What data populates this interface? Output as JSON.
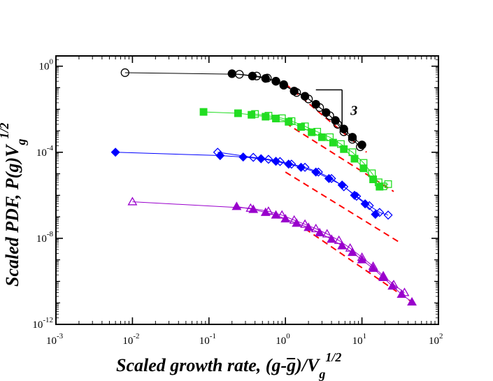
{
  "chart_data": {
    "type": "scatter",
    "title": "",
    "xlabel": "Scaled growth rate, (g-g̅)/Vg^1/2",
    "xlabel_parts": {
      "main": "Scaled growth rate, (g-",
      "bar": "g",
      "after": ")/V",
      "sub": "g",
      "sup": "1/2"
    },
    "ylabel": "Scaled PDF, P(g)Vg^1/2",
    "ylabel_parts": {
      "main": "Scaled PDF, P(g)V",
      "sub": "g",
      "sup": "1/2"
    },
    "xscale": "log",
    "yscale": "log",
    "xlim": [
      0.001,
      100
    ],
    "ylim": [
      1e-12,
      3
    ],
    "x_ticks": [
      {
        "value": 0.001,
        "base": "10",
        "exp": "-3"
      },
      {
        "value": 0.01,
        "base": "10",
        "exp": "-2"
      },
      {
        "value": 0.1,
        "base": "10",
        "exp": "-1"
      },
      {
        "value": 1,
        "base": "10",
        "exp": "0"
      },
      {
        "value": 10,
        "base": "10",
        "exp": "1"
      },
      {
        "value": 100,
        "base": "10",
        "exp": "2"
      }
    ],
    "y_ticks": [
      {
        "value": 1,
        "base": "10",
        "exp": "0"
      },
      {
        "value": 0.0001,
        "base": "10",
        "exp": "-4"
      },
      {
        "value": 1e-08,
        "base": "10",
        "exp": "-8"
      },
      {
        "value": 1e-12,
        "base": "10",
        "exp": "-12"
      }
    ],
    "grid": false,
    "annotation": {
      "text": "3",
      "slope_triangle": {
        "x1": 2.5,
        "x2": 5.5,
        "y1": 0.08,
        "y2": 0.0009
      }
    },
    "series": [
      {
        "name": "black-open",
        "color": "#000000",
        "marker": "circle",
        "filled": false,
        "x": [
          0.008,
          0.25,
          0.42,
          0.58,
          0.75,
          0.95,
          1.4,
          2.0,
          2.8,
          3.8,
          4.8,
          5.8,
          7.5,
          9.5
        ],
        "y": [
          0.5,
          0.42,
          0.35,
          0.28,
          0.2,
          0.13,
          0.06,
          0.03,
          0.012,
          0.005,
          0.002,
          0.0009,
          0.0004,
          0.00018
        ]
      },
      {
        "name": "black-filled",
        "color": "#000000",
        "marker": "circle",
        "filled": true,
        "x": [
          0.2,
          0.37,
          0.55,
          0.75,
          0.95,
          1.3,
          1.8,
          2.5,
          3.4,
          4.5,
          5.8,
          7.5,
          10
        ],
        "y": [
          0.45,
          0.35,
          0.27,
          0.2,
          0.14,
          0.07,
          0.04,
          0.017,
          0.007,
          0.003,
          0.0012,
          0.0005,
          0.00022
        ]
      },
      {
        "name": "green-filled",
        "color": "#22dd22",
        "marker": "square",
        "filled": true,
        "x": [
          0.085,
          0.24,
          0.36,
          0.55,
          0.75,
          1.1,
          1.6,
          2.2,
          3.0,
          4.2,
          5.8,
          8.0,
          10.5,
          14,
          17
        ],
        "y": [
          0.0075,
          0.0065,
          0.0055,
          0.0045,
          0.0037,
          0.0026,
          0.0015,
          0.00085,
          0.0005,
          0.00028,
          0.00014,
          5e-05,
          1.8e-05,
          5.5e-06,
          2.5e-06
        ]
      },
      {
        "name": "green-open",
        "color": "#22dd22",
        "marker": "square",
        "filled": false,
        "x": [
          0.4,
          0.6,
          0.9,
          1.2,
          1.8,
          2.6,
          3.8,
          5.3,
          7.5,
          10.5,
          13.5,
          16.5,
          19,
          22
        ],
        "y": [
          0.006,
          0.005,
          0.0038,
          0.0028,
          0.0016,
          0.0009,
          0.0005,
          0.00024,
          0.0001,
          3.2e-05,
          1.05e-05,
          4e-06,
          2.6e-06,
          3.3e-06
        ]
      },
      {
        "name": "blue-filled",
        "color": "#0000ff",
        "marker": "diamond",
        "filled": true,
        "x": [
          0.006,
          0.14,
          0.28,
          0.48,
          0.75,
          1.1,
          1.6,
          2.5,
          3.7,
          5.5,
          8.0,
          11,
          15
        ],
        "y": [
          0.0001,
          7e-05,
          6e-05,
          5e-05,
          3.8e-05,
          2.8e-05,
          2e-05,
          1.2e-05,
          6e-06,
          3e-06,
          1e-06,
          4e-07,
          1.3e-07
        ]
      },
      {
        "name": "blue-open",
        "color": "#0000ff",
        "marker": "diamond",
        "filled": false,
        "x": [
          0.13,
          0.38,
          0.6,
          0.85,
          1.2,
          1.8,
          2.7,
          4.0,
          5.8,
          8.5,
          12.5,
          17,
          22
        ],
        "y": [
          0.0001,
          5.8e-05,
          4.7e-05,
          3.7e-05,
          2.8e-05,
          2e-05,
          1.2e-05,
          6e-06,
          2.5e-06,
          9e-07,
          3.3e-07,
          1.6e-07,
          1.2e-07
        ]
      },
      {
        "name": "purple-filled",
        "color": "#9900cc",
        "marker": "triangle",
        "filled": true,
        "x": [
          0.23,
          0.38,
          0.55,
          0.75,
          1.0,
          1.4,
          2.0,
          2.8,
          4.0,
          5.5,
          7.5,
          10,
          14,
          19,
          25,
          33,
          45
        ],
        "y": [
          3e-07,
          2.2e-07,
          1.6e-07,
          1.2e-07,
          8e-08,
          5e-08,
          3.2e-08,
          1.8e-08,
          9e-09,
          4.5e-09,
          2.2e-09,
          1e-09,
          4e-10,
          1.5e-10,
          6e-11,
          2.5e-11,
          1.1e-11
        ]
      },
      {
        "name": "purple-open",
        "color": "#9900cc",
        "marker": "triangle",
        "filled": false,
        "x": [
          0.01,
          0.35,
          0.6,
          0.9,
          1.3,
          1.8,
          2.5,
          3.5,
          5.0,
          7.0,
          10,
          14,
          19,
          26,
          36
        ],
        "y": [
          5e-07,
          2.5e-07,
          1.8e-07,
          1.2e-07,
          7e-08,
          4.5e-08,
          2.8e-08,
          1.6e-08,
          8e-09,
          3.5e-09,
          1.3e-09,
          5e-10,
          1.8e-10,
          7e-11,
          3e-11
        ]
      }
    ],
    "reference_lines": [
      {
        "color": "#ff0000",
        "style": "dashed",
        "x": [
          1.0,
          11.5
        ],
        "y": [
          0.15,
          0.0001
        ]
      },
      {
        "color": "#ff0000",
        "style": "dashed",
        "x": [
          1.0,
          26.0
        ],
        "y": [
          0.0023,
          1.5e-06
        ]
      },
      {
        "color": "#ff0000",
        "style": "dashed",
        "x": [
          1.0,
          31.0
        ],
        "y": [
          1.2e-05,
          6.5e-09
        ]
      },
      {
        "color": "#ff0000",
        "style": "dashed",
        "x": [
          1.8,
          45.0
        ],
        "y": [
          2.8e-08,
          1.1e-11
        ]
      }
    ]
  }
}
